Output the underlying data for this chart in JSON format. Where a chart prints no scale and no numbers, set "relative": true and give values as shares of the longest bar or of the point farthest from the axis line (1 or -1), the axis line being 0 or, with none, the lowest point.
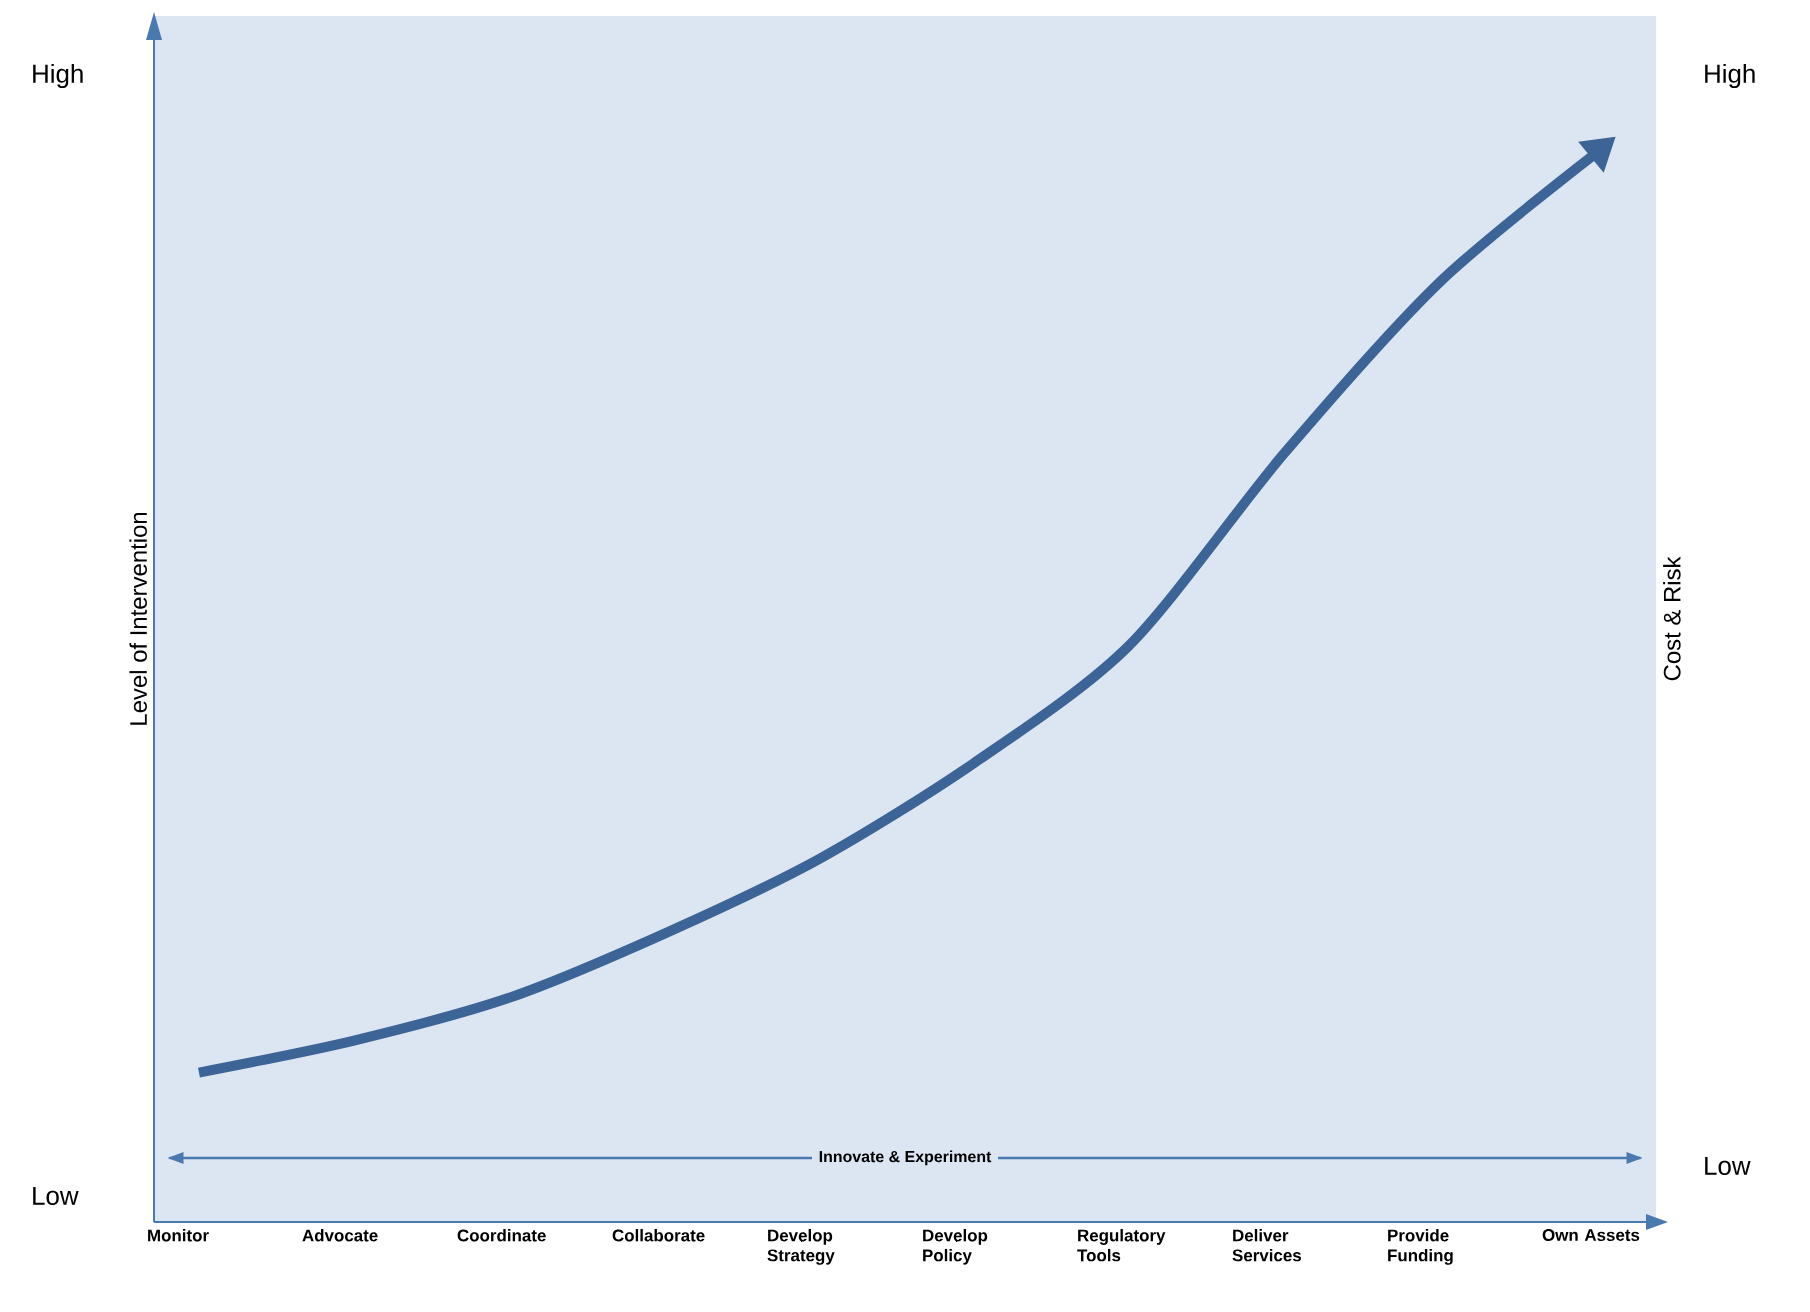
{
  "chart_data": {
    "type": "line",
    "relative": true,
    "ylabel": "Level of Intervention",
    "y2label": "Cost & Risk",
    "categories": [
      "Monitor",
      "Advocate",
      "Coordinate",
      "Collaborate",
      "Develop Strategy",
      "Develop Policy",
      "Regulatory Tools",
      "Deliver Services",
      "Provide Funding",
      "Own Assets"
    ],
    "series": [
      {
        "color": "#3d6496",
        "values": [
          0.14,
          0.17,
          0.21,
          0.27,
          0.34,
          0.43,
          0.54,
          0.72,
          0.88,
          1.0
        ]
      }
    ],
    "annotations": [
      "High",
      "Low",
      "High",
      "Low"
    ],
    "ref_lines": [
      {
        "axis": "y",
        "value": 0.06,
        "label": "Innovate & Experiment",
        "color": "#4a78b0"
      }
    ]
  }
}
